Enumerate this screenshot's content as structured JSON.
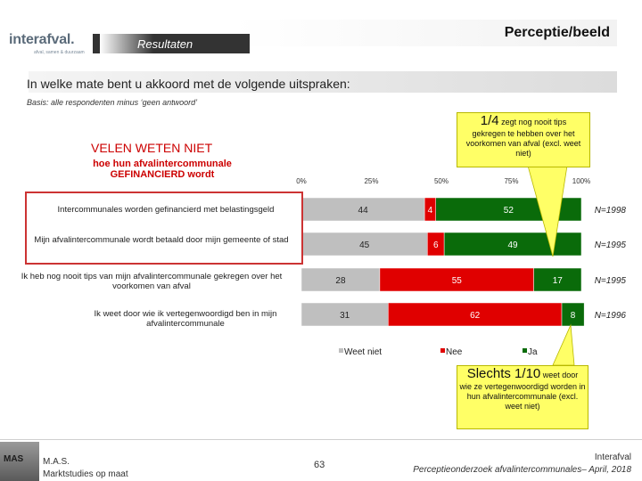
{
  "header": {
    "logo_text": "interafval.",
    "logo_sub": "afval, samen & duurzaam",
    "title": "Perceptie/beeld",
    "section": "Resultaten"
  },
  "question": "In welke mate bent u akkoord met de volgende uitspraken:",
  "basis": "Basis: alle respondenten minus ‘geen antwoord’",
  "callout_top": {
    "big": "1/4",
    "text1": " zegt nog nooit tips",
    "text2": "gekregen te hebben over het voorkomen van afval (excl. weet niet)"
  },
  "callout_bottom": {
    "big": "Slechts 1/10",
    "text1": " weet door",
    "text2": "wie ze vertegenwoordigd worden in hun afvalintercommunale (excl. weet niet)"
  },
  "emphasis": {
    "title": "VELEN WETEN NIET",
    "subtitle": "hoe hun afvalintercommunale GEFINANCIERD wordt"
  },
  "colors": {
    "weet_niet": "#bfbfbf",
    "nee": "#e00000",
    "ja": "#0a6b0a",
    "callout": "#ffff66",
    "emphasis": "#cc0000"
  },
  "chart_data": {
    "type": "bar",
    "orientation": "horizontal",
    "stacked": true,
    "xlim": [
      0,
      100
    ],
    "x_ticks": [
      "0%",
      "25%",
      "50%",
      "75%",
      "100%"
    ],
    "categories": [
      "Intercommunales worden gefinancierd met belastingsgeld",
      "Mijn afvalintercommunale wordt betaald door mijn gemeente of stad",
      "Ik heb nog nooit tips van mijn afvalintercommunale gekregen over het voorkomen van afval",
      "Ik weet door wie ik vertegenwoordigd ben in mijn afvalintercommunale"
    ],
    "series": [
      {
        "name": "Weet niet",
        "values": [
          44,
          45,
          28,
          31
        ]
      },
      {
        "name": "Nee",
        "values": [
          4,
          6,
          55,
          62
        ]
      },
      {
        "name": "Ja",
        "values": [
          52,
          49,
          17,
          8
        ]
      }
    ],
    "n_labels": [
      "N=1998",
      "N=1995",
      "N=1995",
      "N=1996"
    ],
    "legend": [
      "Weet niet",
      "Nee",
      "Ja"
    ],
    "legend_position": "bottom"
  },
  "footer": {
    "mas_logo": "MAS",
    "company_line1": "M.A.S.",
    "company_line2": "Marktstudies op maat",
    "page": "63",
    "org": "Interafval",
    "study": "Perceptieonderzoek afvalintercommunales– April, 2018"
  }
}
